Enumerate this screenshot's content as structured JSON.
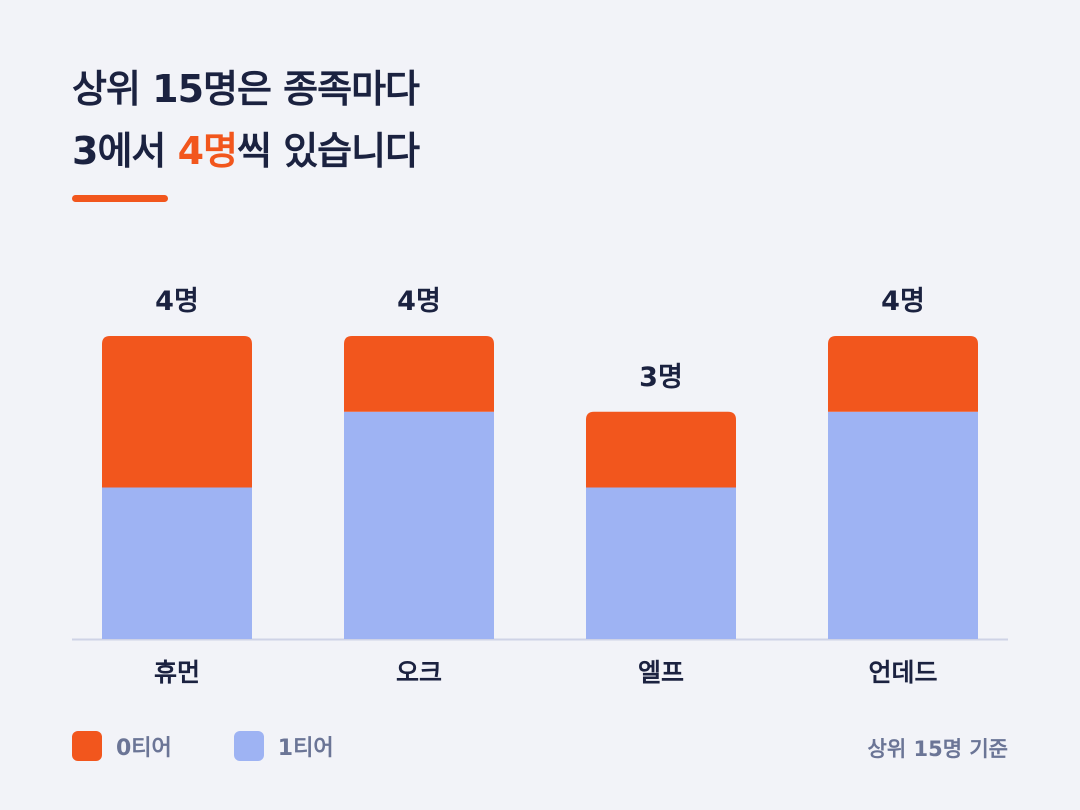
{
  "title": {
    "line1": "상위 15명은 종족마다",
    "line2_prefix": "3에서 ",
    "line2_accent": "4명",
    "line2_suffix": "씩 있습니다"
  },
  "note": "상위 15명 기준",
  "colors": {
    "accent": "#f2561d",
    "tier1": "#9eb3f3",
    "text": "#1b2240",
    "muted": "#6b7596"
  },
  "chart_data": {
    "type": "bar",
    "stacked": true,
    "categories": [
      "휴먼",
      "오크",
      "엘프",
      "언데드"
    ],
    "series": [
      {
        "name": "1티어",
        "color": "#9eb3f3",
        "values": [
          2,
          3,
          2,
          3
        ]
      },
      {
        "name": "0티어",
        "color": "#f2561d",
        "values": [
          2,
          1,
          1,
          1
        ]
      }
    ],
    "data_labels": [
      "4명",
      "4명",
      "3명",
      "4명"
    ],
    "ylim": [
      0,
      4
    ],
    "grid": false,
    "legend_position": "bottom-left"
  }
}
